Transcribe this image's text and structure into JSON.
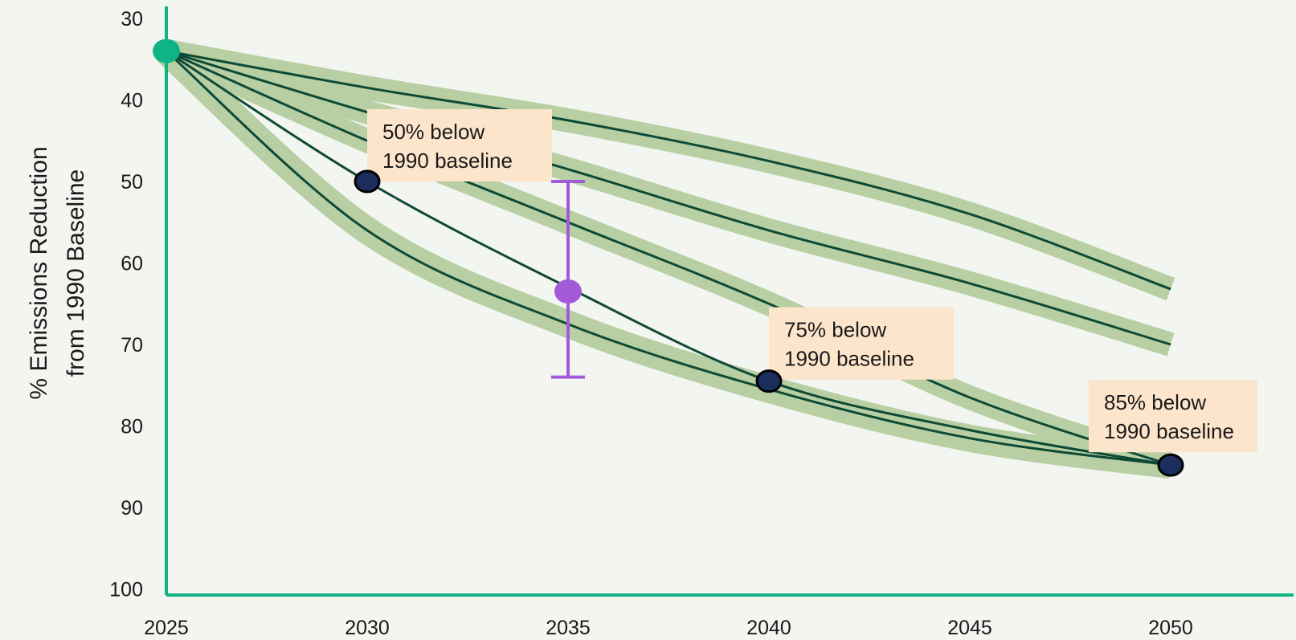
{
  "chart_data": {
    "type": "line",
    "title": "",
    "xlabel": "",
    "ylabel": [
      "% Emissions Reduction",
      "from 1990 Baseline"
    ],
    "x_ticks": [
      2025,
      2030,
      2035,
      2040,
      2045,
      2050
    ],
    "y_ticks": [
      30,
      40,
      50,
      60,
      70,
      80,
      90,
      100
    ],
    "xlim": [
      2025,
      2052.5
    ],
    "ylim": [
      30,
      100
    ],
    "y_inverted": true,
    "grid": false,
    "band_color": "#b8cfa3",
    "line_color": "#0d4a36",
    "axis_color": "#10b386",
    "series": [
      {
        "band": "upper",
        "x": [
          2025,
          2030,
          2035,
          2040,
          2045,
          2050
        ],
        "y": [
          34,
          38.5,
          42.5,
          47.5,
          54,
          63.2
        ]
      },
      {
        "band": "upper-middle",
        "x": [
          2025,
          2030,
          2035,
          2040,
          2045,
          2050
        ],
        "y": [
          34,
          41.5,
          48.5,
          56,
          62.5,
          70
        ]
      },
      {
        "band": "lower-middle",
        "x": [
          2025,
          2030,
          2035,
          2040,
          2045,
          2050
        ],
        "y": [
          34,
          45,
          55,
          65,
          76.5,
          84.8
        ]
      },
      {
        "band": "lower-middle",
        "x": [
          2025,
          2030,
          2035,
          2040,
          2045,
          2050
        ],
        "y": [
          34,
          50,
          63,
          74.5,
          80.5,
          84.8
        ]
      },
      {
        "band": "lower",
        "x": [
          2025,
          2030,
          2035,
          2040,
          2045,
          2050
        ],
        "y": [
          34,
          56,
          67.5,
          75.5,
          81.5,
          84.8
        ]
      }
    ],
    "start_point": {
      "x": 2025,
      "y": 34,
      "color": "#10b386"
    },
    "target_points": [
      {
        "x": 2030,
        "y": 50,
        "color": "#1c2e5e"
      },
      {
        "x": 2040,
        "y": 74.5,
        "color": "#1c2e5e"
      },
      {
        "x": 2050,
        "y": 84.8,
        "color": "#1c2e5e"
      }
    ],
    "error_bar": {
      "x": 2035,
      "y": 63.5,
      "low": 50,
      "high": 74,
      "color": "#a25ad9"
    },
    "annotations": [
      {
        "lines": [
          "50% below",
          "1990 baseline"
        ],
        "anchor_x": 2030,
        "anchor_y": 50
      },
      {
        "lines": [
          "75% below",
          "1990 baseline"
        ],
        "anchor_x": 2040,
        "anchor_y": 74.5
      },
      {
        "lines": [
          "85% below",
          "1990 baseline"
        ],
        "anchor_x": 2050,
        "anchor_y": 84.8
      }
    ],
    "annotation_fill": "#fde5cc"
  }
}
